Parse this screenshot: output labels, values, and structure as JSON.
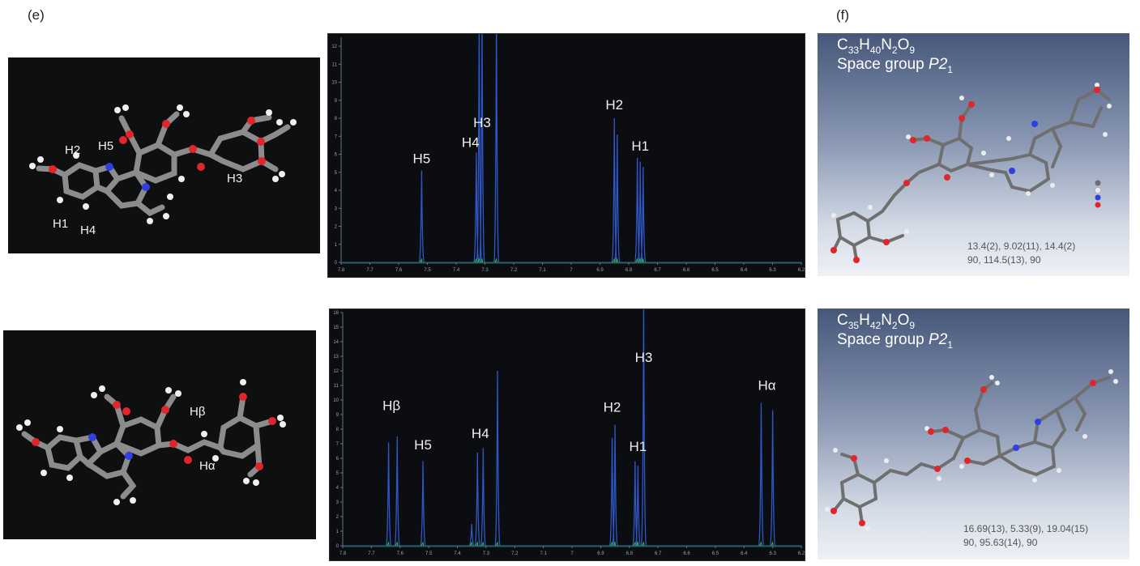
{
  "panels": {
    "e": "(e)",
    "f": "(f)"
  },
  "top": {
    "molecule_labels": [
      "H2",
      "H5",
      "H3",
      "H1",
      "H4"
    ],
    "crystal": {
      "formula_parts": [
        "C",
        "33",
        "H",
        "40",
        "N",
        "2",
        "O",
        "9"
      ],
      "space_group_prefix": "Space group ",
      "space_group_symbol": "P2",
      "space_group_sub": "1",
      "cell_line1": "13.4(2), 9.02(11), 14.4(2)",
      "cell_line2": "90, 114.5(13), 90"
    },
    "chart_data": {
      "type": "line",
      "title": "",
      "xlabel": "",
      "ylabel": "",
      "xlim": [
        7.8,
        6.2
      ],
      "ylim": [
        0,
        12.5
      ],
      "x_ticks": [
        "7.8",
        "7.7",
        "7.6",
        "7.5",
        "7.4",
        "7.3",
        "7.2",
        "7.1",
        "7",
        "6.9",
        "6.8",
        "6.7",
        "6.6",
        "6.5",
        "6.4",
        "6.3",
        "6.2"
      ],
      "y_ticks": [
        "0",
        "1",
        "2",
        "3",
        "4",
        "5",
        "6",
        "7",
        "8",
        "9",
        "10",
        "11",
        "12"
      ],
      "peaks": [
        {
          "x": 7.52,
          "y": 5.1
        },
        {
          "x": 7.33,
          "y": 6.1
        },
        {
          "x": 7.32,
          "y": 14
        },
        {
          "x": 7.31,
          "y": 14
        },
        {
          "x": 7.26,
          "y": 14
        },
        {
          "x": 6.85,
          "y": 8.0
        },
        {
          "x": 6.84,
          "y": 7.1
        },
        {
          "x": 6.77,
          "y": 5.8
        },
        {
          "x": 6.76,
          "y": 5.6
        },
        {
          "x": 6.75,
          "y": 5.3
        }
      ],
      "annotations": [
        {
          "text": "H5",
          "x": 7.52,
          "y": 5.5
        },
        {
          "text": "H4",
          "x": 7.35,
          "y": 6.4
        },
        {
          "text": "H3",
          "x": 7.31,
          "y": 7.5
        },
        {
          "text": "H2",
          "x": 6.85,
          "y": 8.5
        },
        {
          "text": "H1",
          "x": 6.76,
          "y": 6.2
        }
      ]
    }
  },
  "bottom": {
    "molecule_labels": [
      "Hβ",
      "Hα"
    ],
    "crystal": {
      "formula_parts": [
        "C",
        "35",
        "H",
        "42",
        "N",
        "2",
        "O",
        "9"
      ],
      "space_group_prefix": "Space group ",
      "space_group_symbol": "P2",
      "space_group_sub": "1",
      "cell_line1": "16.69(13), 5.33(9), 19.04(15)",
      "cell_line2": "90, 95.63(14), 90"
    },
    "chart_data": {
      "type": "line",
      "title": "",
      "xlabel": "",
      "ylabel": "",
      "xlim": [
        7.8,
        6.2
      ],
      "ylim": [
        0,
        16
      ],
      "x_ticks": [
        "7.8",
        "7.7",
        "7.6",
        "7.5",
        "7.4",
        "7.3",
        "7.2",
        "7.1",
        "7",
        "6.9",
        "6.8",
        "6.7",
        "6.6",
        "6.5",
        "6.4",
        "6.3",
        "6.2"
      ],
      "y_ticks": [
        "0",
        "1",
        "2",
        "3",
        "4",
        "5",
        "6",
        "7",
        "8",
        "9",
        "10",
        "11",
        "12",
        "13",
        "14",
        "15",
        "16"
      ],
      "peaks": [
        {
          "x": 7.64,
          "y": 7.1
        },
        {
          "x": 7.61,
          "y": 7.5
        },
        {
          "x": 7.52,
          "y": 5.8
        },
        {
          "x": 7.35,
          "y": 1.5
        },
        {
          "x": 7.33,
          "y": 6.4
        },
        {
          "x": 7.31,
          "y": 6.7
        },
        {
          "x": 7.26,
          "y": 12.0
        },
        {
          "x": 6.86,
          "y": 7.4
        },
        {
          "x": 6.85,
          "y": 8.3
        },
        {
          "x": 6.78,
          "y": 5.8
        },
        {
          "x": 6.77,
          "y": 5.5
        },
        {
          "x": 6.75,
          "y": 17
        },
        {
          "x": 6.34,
          "y": 9.8
        },
        {
          "x": 6.3,
          "y": 9.3
        }
      ],
      "annotations": [
        {
          "text": "Hβ",
          "x": 7.63,
          "y": 9.3
        },
        {
          "text": "H5",
          "x": 7.52,
          "y": 6.6
        },
        {
          "text": "H4",
          "x": 7.32,
          "y": 7.4
        },
        {
          "text": "H3",
          "x": 6.75,
          "y": 12.6
        },
        {
          "text": "H2",
          "x": 6.86,
          "y": 9.2
        },
        {
          "text": "H1",
          "x": 6.77,
          "y": 6.5
        },
        {
          "text": "Hα",
          "x": 6.32,
          "y": 10.7
        }
      ]
    }
  },
  "colors": {
    "spectrum_blue": "#2f57c9",
    "spectrum_green": "#2fc22f",
    "panel_dark": "#0d0f11",
    "carbon": "#8a8a8a",
    "oxygen": "#e0262a",
    "nitrogen": "#2f3fe0",
    "hydrogen": "#ececec"
  }
}
